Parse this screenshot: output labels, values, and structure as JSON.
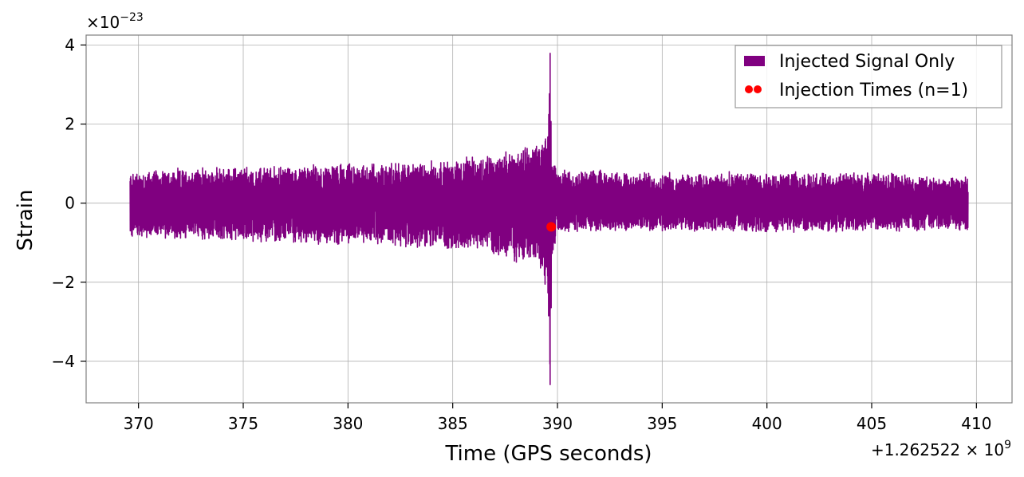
{
  "chart_data": {
    "type": "line",
    "title": "",
    "xlabel": "Time (GPS seconds)",
    "ylabel": "Strain",
    "x_offset_label": "+1.262522 × 10^9",
    "x_offset_main": "+1.262522 × 10",
    "x_offset_exp": "9",
    "y_scale_label": "×10^−23",
    "y_scale_main": "×10",
    "y_scale_exp": "−23",
    "xlim": [
      367.5,
      411.7
    ],
    "ylim": [
      -5.05,
      4.25
    ],
    "grid": true,
    "legend_position": "top-right",
    "x_ticks": [
      370,
      375,
      380,
      385,
      390,
      395,
      400,
      405,
      410
    ],
    "x_tick_labels": [
      "370",
      "375",
      "380",
      "385",
      "390",
      "395",
      "400",
      "405",
      "410"
    ],
    "y_ticks": [
      -4,
      -2,
      0,
      2,
      4
    ],
    "y_tick_labels": [
      "−4",
      "−2",
      "0",
      "2",
      "4"
    ],
    "series": [
      {
        "name": "Injected Signal Only",
        "color": "#800080",
        "kind": "strain-timeseries",
        "x_start": 369.6,
        "x_end": 409.6,
        "envelope_x": [
          369.6,
          372,
          375,
          378,
          381,
          384,
          386,
          387.5,
          388.5,
          389.2,
          389.5,
          389.65,
          389.75,
          390,
          392,
          395,
          400,
          405,
          409.6
        ],
        "envelope_upper": [
          0.85,
          0.9,
          0.95,
          1.0,
          1.05,
          1.1,
          1.2,
          1.35,
          1.5,
          1.7,
          2.0,
          3.8,
          1.2,
          0.9,
          0.85,
          0.8,
          0.8,
          0.8,
          0.7
        ],
        "envelope_lower": [
          -0.9,
          -0.95,
          -1.0,
          -1.05,
          -1.1,
          -1.2,
          -1.3,
          -1.45,
          -1.6,
          -1.8,
          -2.5,
          -4.6,
          -1.4,
          -0.8,
          -0.75,
          -0.75,
          -0.75,
          -0.75,
          -0.7
        ]
      },
      {
        "name": "Injection Times (n=1)",
        "color": "#ff0000",
        "kind": "scatter",
        "x": [
          389.7
        ],
        "y": [
          -0.6
        ]
      }
    ]
  }
}
